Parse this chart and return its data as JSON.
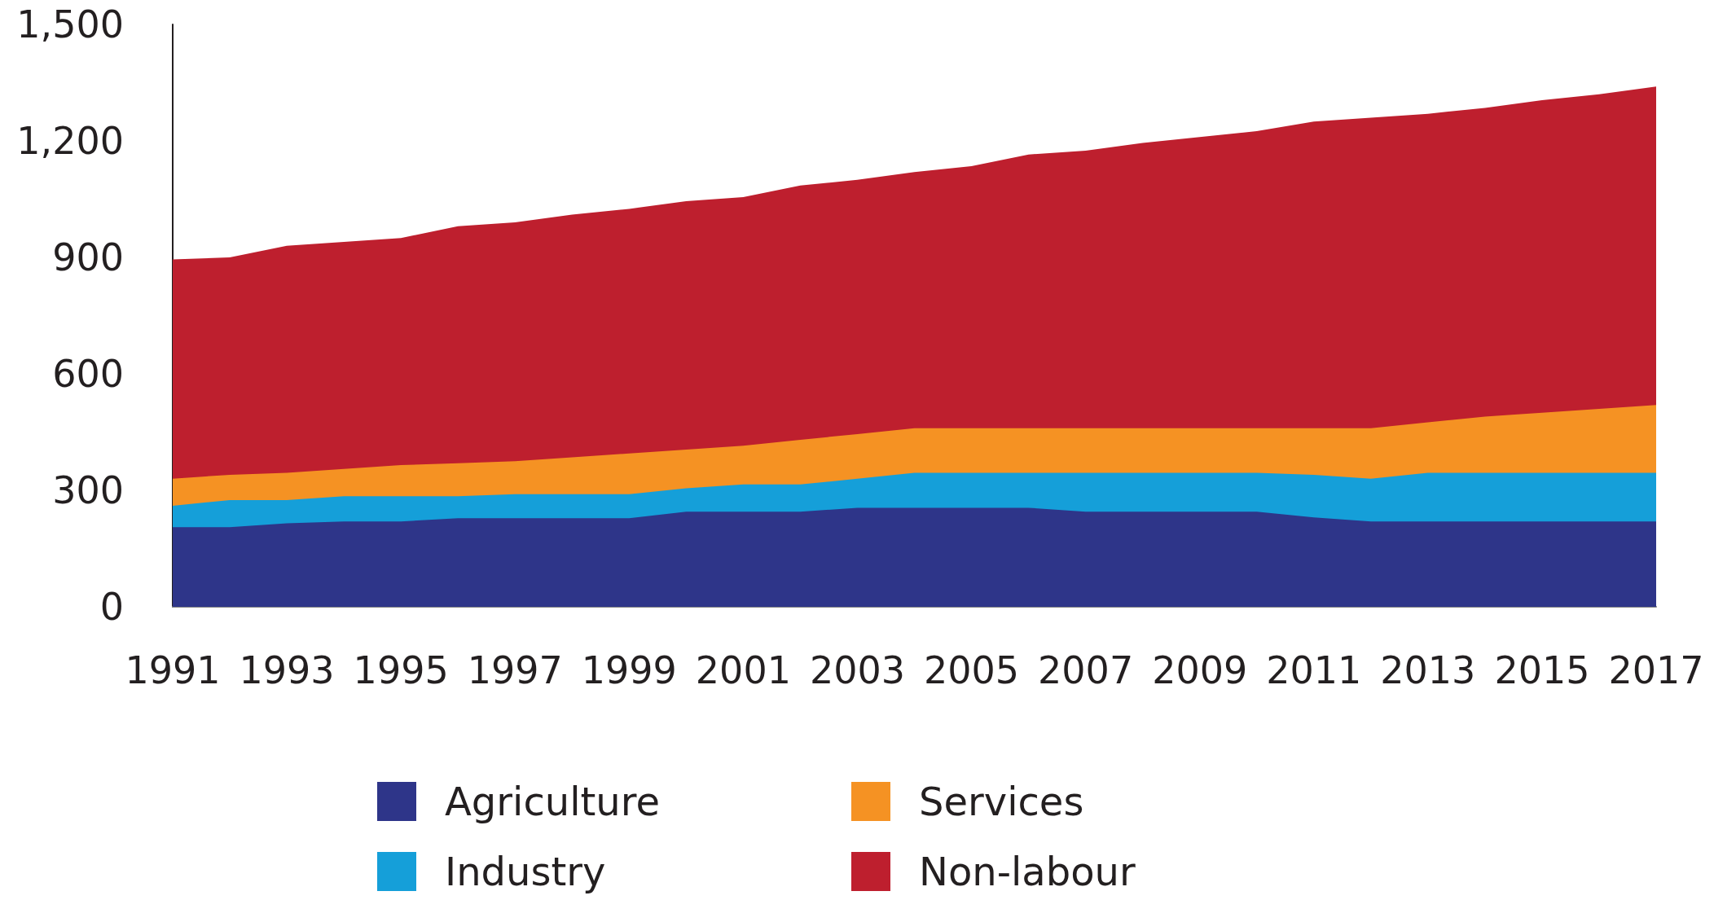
{
  "chart_data": {
    "type": "area",
    "stacked": true,
    "x": [
      1991,
      1992,
      1993,
      1994,
      1995,
      1996,
      1997,
      1998,
      1999,
      2000,
      2001,
      2002,
      2003,
      2004,
      2005,
      2006,
      2007,
      2008,
      2009,
      2010,
      2011,
      2012,
      2013,
      2014,
      2015,
      2016,
      2017
    ],
    "xlim": [
      1991,
      2017
    ],
    "xticks": [
      1991,
      1993,
      1995,
      1997,
      1999,
      2001,
      2003,
      2005,
      2007,
      2009,
      2011,
      2013,
      2015,
      2017
    ],
    "ylim": [
      0,
      1500
    ],
    "yticks": [
      0,
      300,
      600,
      900,
      {
        "value": 1200,
        "label": "1,200"
      },
      {
        "value": 1500,
        "label": "1,500"
      }
    ],
    "grid": false,
    "legend": "bottom",
    "series": [
      {
        "name": "Agriculture",
        "color": "#2e3589",
        "values": [
          205,
          205,
          215,
          220,
          220,
          228,
          228,
          228,
          228,
          245,
          245,
          245,
          255,
          255,
          255,
          255,
          245,
          245,
          245,
          245,
          230,
          220,
          220,
          220,
          220,
          220,
          220
        ]
      },
      {
        "name": "Industry",
        "color": "#159fd9",
        "values": [
          55,
          70,
          60,
          65,
          65,
          57,
          62,
          62,
          62,
          60,
          70,
          70,
          75,
          90,
          90,
          90,
          100,
          100,
          100,
          100,
          110,
          110,
          125,
          125,
          125,
          125,
          125
        ]
      },
      {
        "name": "Services",
        "color": "#f59223",
        "values": [
          70,
          65,
          70,
          70,
          80,
          85,
          85,
          95,
          105,
          100,
          100,
          115,
          115,
          115,
          115,
          115,
          115,
          115,
          115,
          115,
          120,
          130,
          130,
          145,
          155,
          165,
          175
        ]
      },
      {
        "name": "Non-labour",
        "color": "#be1f2e",
        "values": [
          565,
          560,
          585,
          585,
          585,
          610,
          615,
          625,
          630,
          640,
          640,
          655,
          655,
          660,
          675,
          705,
          715,
          735,
          750,
          765,
          790,
          800,
          795,
          795,
          805,
          810,
          820
        ]
      }
    ]
  }
}
